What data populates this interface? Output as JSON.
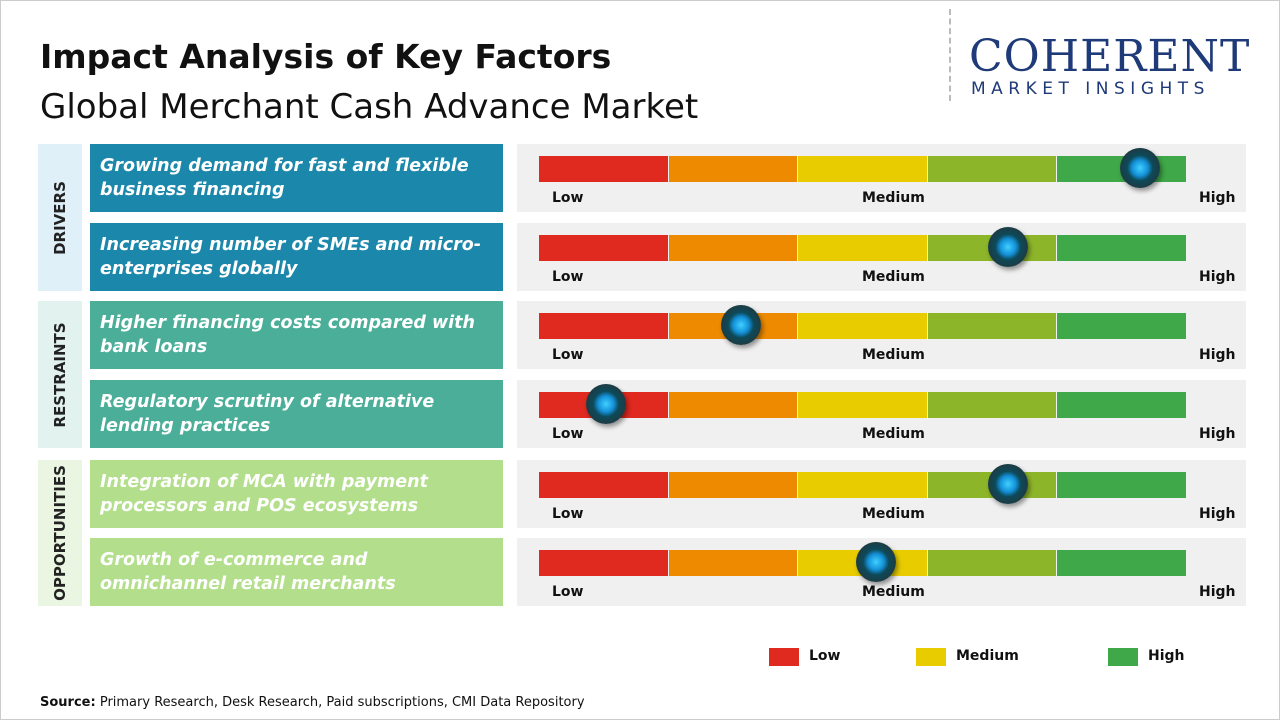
{
  "title": "Impact Analysis of Key Factors",
  "subtitle": "Global Merchant Cash Advance Market",
  "logo": {
    "name": "COHERENT",
    "tagline": "MARKET INSIGHTS"
  },
  "scale": {
    "labels": [
      "Low",
      "Medium",
      "High"
    ],
    "segments": [
      "#e0291f",
      "#ed8a00",
      "#e8cc00",
      "#8db52a",
      "#3fa848"
    ]
  },
  "groups": [
    {
      "name": "DRIVERS",
      "color": "#1b87aa",
      "band": "#dff0f8",
      "text_color": "#ffffff",
      "factors": [
        {
          "text": "Growing demand for fast and flexible business financing",
          "impact": 4.64
        },
        {
          "text": "Increasing number of SMEs and micro-enterprises globally",
          "impact": 3.62
        }
      ]
    },
    {
      "name": "RESTRAINTS",
      "color": "#4aae99",
      "band": "#e2f2ef",
      "text_color": "#ffffff",
      "factors": [
        {
          "text": "Higher financing costs compared with bank loans",
          "impact": 1.56
        },
        {
          "text": "Regulatory scrutiny of alternative lending practices",
          "impact": 0.52
        }
      ]
    },
    {
      "name": "OPPORTUNITIES",
      "color": "#b3df8c",
      "band": "#eaf6e1",
      "text_color": "#ffffff",
      "factors": [
        {
          "text": "Integration of MCA with payment processors and POS ecosystems",
          "impact": 3.62
        },
        {
          "text": "Growth of e-commerce and omnichannel retail merchants",
          "impact": 2.6
        }
      ]
    }
  ],
  "legend": [
    {
      "label": "Low",
      "color": "#e0291f"
    },
    {
      "label": "Medium",
      "color": "#e8cc00"
    },
    {
      "label": "High",
      "color": "#3fa848"
    }
  ],
  "source": {
    "label": "Source:",
    "text": "Primary Research, Desk Research, Paid subscriptions, CMI Data Repository"
  }
}
